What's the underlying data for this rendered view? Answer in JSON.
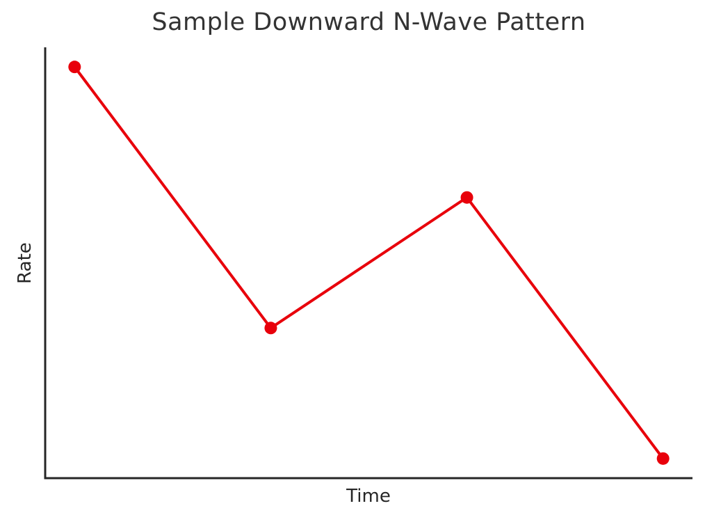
{
  "chart_data": {
    "type": "line",
    "title": "Sample Downward N-Wave Pattern",
    "xlabel": "Time",
    "ylabel": "Rate",
    "x": [
      0,
      1,
      2,
      3
    ],
    "y": [
      3,
      1,
      2,
      0
    ],
    "xlim": [
      -0.15,
      3.15
    ],
    "ylim": [
      -0.15,
      3.15
    ],
    "grid": false,
    "legend": "none",
    "tick_labels": "none",
    "line_color": "#e8000b",
    "marker": "circle",
    "marker_radius": 9,
    "line_width": 4,
    "spine_color": "#262626",
    "spine_width": 3,
    "text_color": "#333333",
    "background_color": "#ffffff"
  }
}
